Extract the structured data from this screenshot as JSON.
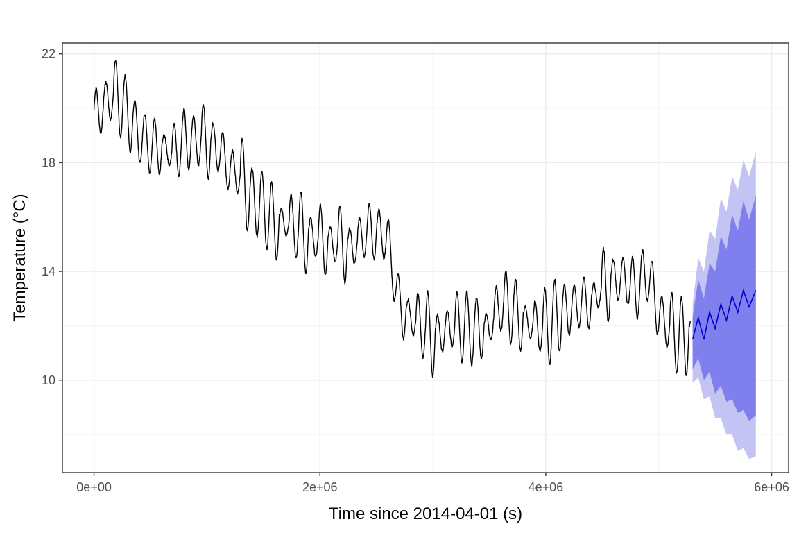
{
  "chart_data": {
    "type": "line",
    "title": "",
    "xlabel": "Time since 2014-04-01 (s)",
    "ylabel": "Temperature (°C)",
    "xlim": [
      -280000,
      6150000
    ],
    "ylim": [
      6.6,
      22.4
    ],
    "x_ticks": [
      0,
      2000000,
      4000000,
      6000000
    ],
    "x_tick_labels": [
      "0e+00",
      "2e+06",
      "4e+06",
      "6e+06"
    ],
    "y_ticks": [
      10,
      14,
      18,
      22
    ],
    "y_tick_labels": [
      "10",
      "14",
      "18",
      "22"
    ],
    "grid": true,
    "legend": "none",
    "colors": {
      "observed": "#000000",
      "forecast": "#0000cc",
      "band_inner": "#7f7fee",
      "band_outer": "#c4c4f4",
      "panel_border": "#333333"
    },
    "series": [
      {
        "x": [
          0,
          100000,
          200000,
          300000,
          400000,
          500000,
          600000,
          700000,
          800000,
          900000,
          1000000,
          1100000,
          1200000,
          1300000,
          1400000,
          1500000,
          1600000,
          1700000,
          1800000,
          1900000,
          2000000,
          2100000,
          2200000,
          2300000,
          2400000,
          2500000,
          2600000,
          2700000,
          2800000,
          2900000,
          3000000,
          3100000,
          3200000,
          3300000,
          3400000,
          3500000,
          3600000,
          3700000,
          3800000,
          3900000,
          4000000,
          4100000,
          4200000,
          4300000,
          4400000,
          4500000,
          4600000,
          4700000,
          4800000,
          4900000,
          5000000,
          5100000,
          5200000,
          5280000
        ],
        "values": [
          19.7,
          20.2,
          20.5,
          19.8,
          19.0,
          18.6,
          18.6,
          18.3,
          18.9,
          18.8,
          18.8,
          18.5,
          17.8,
          17.5,
          16.6,
          16.3,
          15.8,
          15.8,
          15.6,
          15.3,
          15.2,
          15.0,
          15.0,
          14.9,
          15.4,
          15.5,
          15.2,
          12.7,
          12.3,
          12.0,
          11.6,
          11.8,
          12.0,
          11.9,
          11.9,
          11.9,
          12.8,
          12.6,
          12.2,
          12.0,
          11.9,
          12.4,
          12.6,
          12.8,
          12.9,
          13.4,
          13.7,
          13.7,
          13.3,
          14.0,
          12.5,
          11.8,
          11.6,
          11.7
        ]
      },
      {
        "x": [
          5300000,
          5350000,
          5400000,
          5450000,
          5500000,
          5550000,
          5600000,
          5650000,
          5700000,
          5750000,
          5800000,
          5860000
        ],
        "values": [
          11.5,
          12.3,
          11.5,
          12.5,
          11.9,
          12.8,
          12.2,
          13.1,
          12.5,
          13.3,
          12.7,
          13.3
        ],
        "lower_80": [
          10.4,
          10.8,
          10.0,
          10.3,
          9.5,
          9.8,
          9.2,
          9.3,
          8.8,
          8.9,
          8.5,
          8.7
        ],
        "upper_80": [
          12.3,
          13.7,
          13.0,
          14.3,
          14.0,
          15.3,
          14.8,
          16.1,
          15.5,
          16.6,
          15.9,
          16.8
        ],
        "lower_95": [
          9.9,
          10.1,
          9.3,
          9.4,
          8.6,
          8.6,
          8.0,
          8.0,
          7.4,
          7.5,
          7.1,
          7.2
        ],
        "upper_95": [
          12.8,
          14.5,
          14.0,
          15.5,
          15.2,
          16.7,
          16.2,
          17.5,
          17.0,
          18.1,
          17.5,
          18.4
        ]
      }
    ]
  }
}
